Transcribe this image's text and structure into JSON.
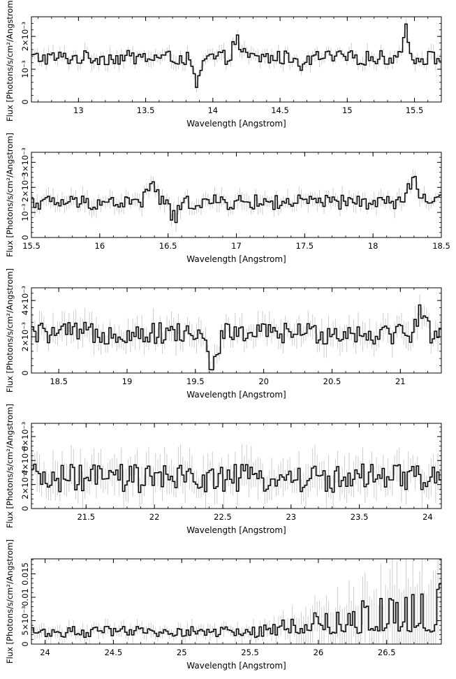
{
  "chart_data": [
    {
      "type": "line",
      "xlabel": "Wavelength [Angstrom]",
      "ylabel": "Flux [Photons/s/cm²/Angstrom]",
      "xlim": [
        12.65,
        15.7
      ],
      "ylim": [
        0,
        0.0026
      ],
      "xticks": [
        {
          "v": 13,
          "label": "13"
        },
        {
          "v": 13.5,
          "label": "13.5"
        },
        {
          "v": 14,
          "label": "14"
        },
        {
          "v": 14.5,
          "label": "14.5"
        },
        {
          "v": 15,
          "label": "15"
        },
        {
          "v": 15.5,
          "label": "15.5"
        }
      ],
      "yticks": [
        {
          "v": 0,
          "label": "0"
        },
        {
          "v": 0.001,
          "label": "10⁻³"
        },
        {
          "v": 0.002,
          "label": "2×10⁻³"
        }
      ],
      "series": [
        {
          "base": 0.00135,
          "noise": 0.00022,
          "err": 0.00018,
          "bins": 180,
          "dips": [
            [
              13.88,
              0.0008,
              0.03
            ],
            [
              14.68,
              0.0004,
              0.02
            ]
          ],
          "peaks": [
            [
              15.43,
              0.0009,
              0.02
            ],
            [
              14.18,
              0.0005,
              0.03
            ]
          ]
        }
      ]
    },
    {
      "type": "line",
      "xlabel": "Wavelength [Angstrom]",
      "ylabel": "Flux [Photons/s/cm²/Angstrom]",
      "xlim": [
        15.5,
        18.5
      ],
      "ylim": [
        0,
        0.0034
      ],
      "xticks": [
        {
          "v": 15.5,
          "label": "15.5"
        },
        {
          "v": 16,
          "label": "16"
        },
        {
          "v": 16.5,
          "label": "16.5"
        },
        {
          "v": 17,
          "label": "17"
        },
        {
          "v": 17.5,
          "label": "17.5"
        },
        {
          "v": 18,
          "label": "18"
        },
        {
          "v": 18.5,
          "label": "18.5"
        }
      ],
      "yticks": [
        {
          "v": 0,
          "label": "0"
        },
        {
          "v": 0.001,
          "label": "10⁻³"
        },
        {
          "v": 0.002,
          "label": "2×10⁻³"
        },
        {
          "v": 0.003,
          "label": "3×10⁻³"
        }
      ],
      "series": [
        {
          "base": 0.0014,
          "noise": 0.0003,
          "err": 0.00028,
          "bins": 180,
          "dips": [
            [
              16.55,
              0.0006,
              0.03
            ]
          ],
          "peaks": [
            [
              16.38,
              0.0008,
              0.03
            ],
            [
              18.3,
              0.0008,
              0.04
            ]
          ]
        }
      ]
    },
    {
      "type": "line",
      "xlabel": "Wavelength [Angstrom]",
      "ylabel": "Flux [Photons/s/cm²/Angstrom]",
      "xlim": [
        18.3,
        21.3
      ],
      "ylim": [
        0,
        0.0047
      ],
      "xticks": [
        {
          "v": 18.5,
          "label": "18.5"
        },
        {
          "v": 19,
          "label": "19"
        },
        {
          "v": 19.5,
          "label": "19.5"
        },
        {
          "v": 20,
          "label": "20"
        },
        {
          "v": 20.5,
          "label": "20.5"
        },
        {
          "v": 21,
          "label": "21"
        }
      ],
      "yticks": [
        {
          "v": 0,
          "label": "0"
        },
        {
          "v": 0.002,
          "label": "2×10⁻³"
        },
        {
          "v": 0.004,
          "label": "4×10⁻³"
        }
      ],
      "series": [
        {
          "base": 0.0022,
          "noise": 0.0006,
          "err": 0.0006,
          "bins": 180,
          "dips": [
            [
              19.62,
              0.0016,
              0.04
            ]
          ],
          "peaks": [
            [
              21.15,
              0.0012,
              0.03
            ]
          ]
        }
      ]
    },
    {
      "type": "line",
      "xlabel": "Wavelength [Angstrom]",
      "ylabel": "Flux [Photons/s/cm²/Angstrom]",
      "xlim": [
        21.1,
        24.1
      ],
      "ylim": [
        0,
        0.0071
      ],
      "xticks": [
        {
          "v": 21.5,
          "label": "21.5"
        },
        {
          "v": 22,
          "label": "22"
        },
        {
          "v": 22.5,
          "label": "22.5"
        },
        {
          "v": 23,
          "label": "23"
        },
        {
          "v": 23.5,
          "label": "23.5"
        },
        {
          "v": 24,
          "label": "24"
        }
      ],
      "yticks": [
        {
          "v": 0,
          "label": "0"
        },
        {
          "v": 0.002,
          "label": "2×10⁻³"
        },
        {
          "v": 0.004,
          "label": "4×10⁻³"
        },
        {
          "v": 0.006,
          "label": "6×10⁻³"
        }
      ],
      "series": [
        {
          "base": 0.0025,
          "noise": 0.0012,
          "err": 0.0013,
          "bins": 180,
          "dips": [],
          "peaks": []
        }
      ]
    },
    {
      "type": "line",
      "xlabel": "Wavelength [Angstrom]",
      "ylabel": "Flux [Photons/s/cm²/Angstrom]",
      "xlim": [
        23.9,
        26.9
      ],
      "ylim": [
        0,
        0.0182
      ],
      "xticks": [
        {
          "v": 24,
          "label": "24"
        },
        {
          "v": 24.5,
          "label": "24.5"
        },
        {
          "v": 25,
          "label": "25"
        },
        {
          "v": 25.5,
          "label": "25.5"
        },
        {
          "v": 26,
          "label": "26"
        },
        {
          "v": 26.5,
          "label": "26.5"
        }
      ],
      "yticks": [
        {
          "v": 0,
          "label": "0"
        },
        {
          "v": 0.005,
          "label": "5×10⁻³"
        },
        {
          "v": 0.01,
          "label": "0.01"
        },
        {
          "v": 0.015,
          "label": "0.015"
        }
      ],
      "series": [
        {
          "base": 0.0026,
          "noise": 0.0012,
          "err": 0.0013,
          "bins": 180,
          "dips": [],
          "peaks": [],
          "rise": [
            25.6,
            0.0065
          ]
        }
      ]
    }
  ]
}
